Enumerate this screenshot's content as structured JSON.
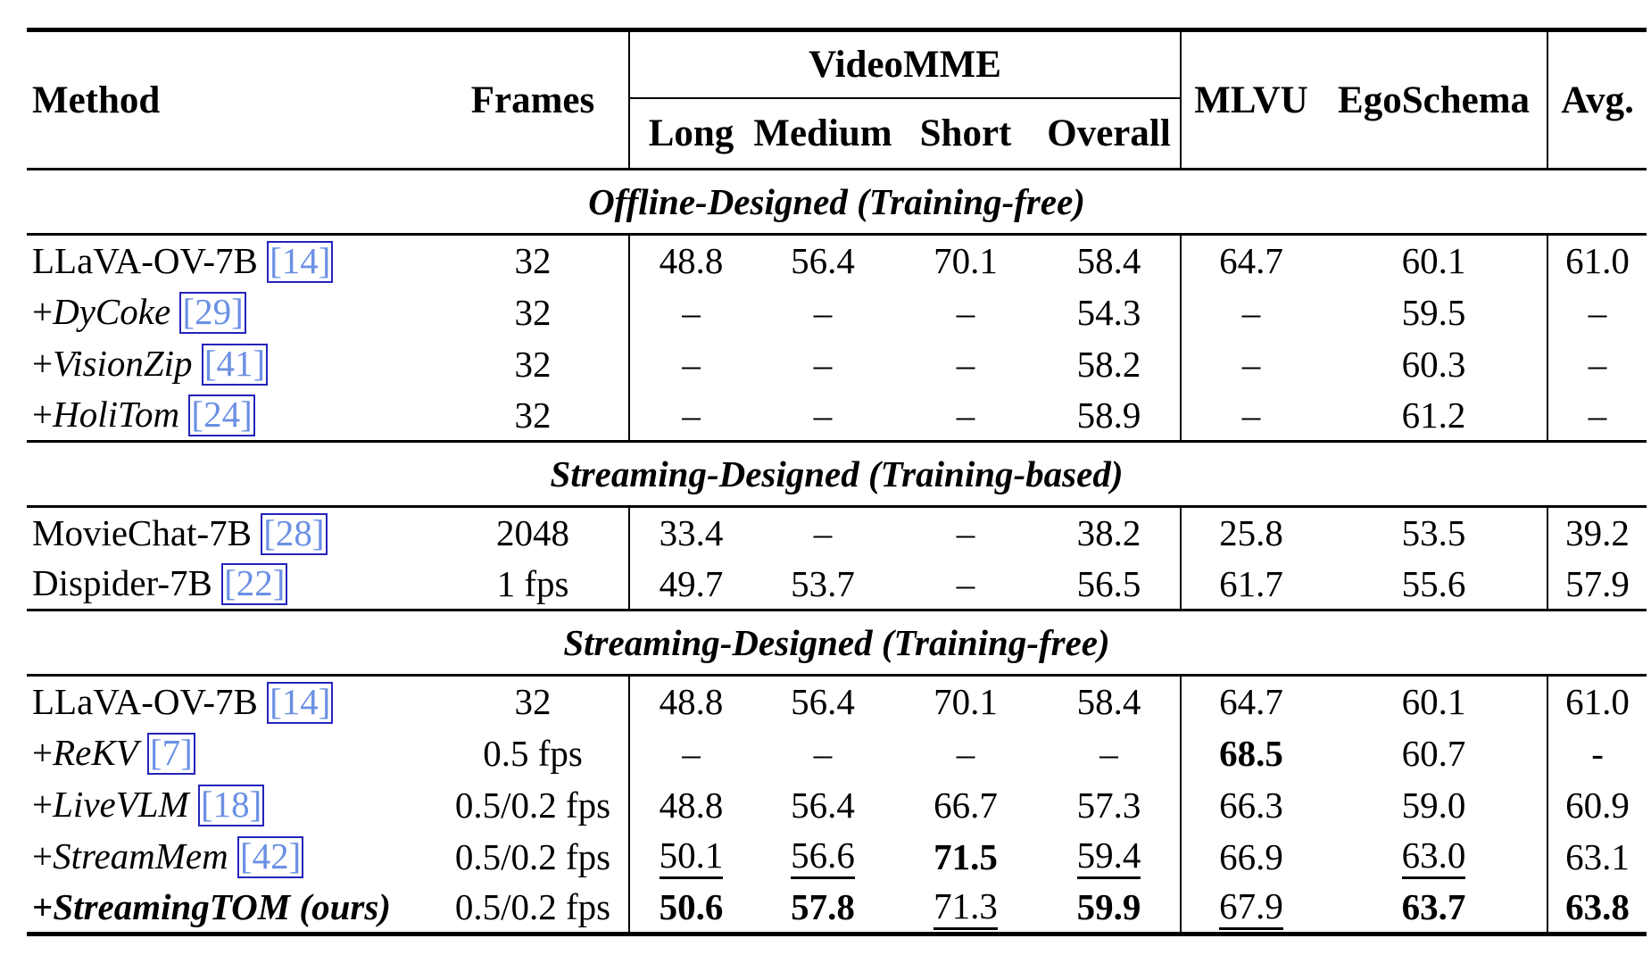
{
  "colors": {
    "citation_text": "#6b90e4",
    "citation_border": "#2323bb",
    "rule": "#000000"
  },
  "table": {
    "headers": {
      "method": "Method",
      "frames": "Frames",
      "videomme": "VideoMME",
      "videomme_sub": [
        "Long",
        "Medium",
        "Short",
        "Overall"
      ],
      "mlvu": "MLVU",
      "egoschema": "EgoSchema",
      "avg": "Avg."
    },
    "sections": [
      {
        "title": "Offline-Designed (Training-free)",
        "rows": [
          {
            "method": {
              "pre": "",
              "name": "LLaVA-OV-7B",
              "italic": false,
              "bold": false,
              "cite": "[14]"
            },
            "frames": "32",
            "values": [
              {
                "t": "48.8"
              },
              {
                "t": "56.4"
              },
              {
                "t": "70.1"
              },
              {
                "t": "58.4"
              },
              {
                "t": "64.7"
              },
              {
                "t": "60.1"
              },
              {
                "t": "61.0"
              }
            ]
          },
          {
            "method": {
              "pre": "+",
              "name": "DyCoke",
              "italic": true,
              "bold": false,
              "cite": "[29]"
            },
            "frames": "32",
            "values": [
              {
                "t": "–"
              },
              {
                "t": "–"
              },
              {
                "t": "–"
              },
              {
                "t": "54.3"
              },
              {
                "t": "–"
              },
              {
                "t": "59.5"
              },
              {
                "t": "–"
              }
            ]
          },
          {
            "method": {
              "pre": "+",
              "name": "VisionZip",
              "italic": true,
              "bold": false,
              "cite": "[41]"
            },
            "frames": "32",
            "values": [
              {
                "t": "–"
              },
              {
                "t": "–"
              },
              {
                "t": "–"
              },
              {
                "t": "58.2"
              },
              {
                "t": "–"
              },
              {
                "t": "60.3"
              },
              {
                "t": "–"
              }
            ]
          },
          {
            "method": {
              "pre": "+",
              "name": "HoliTom",
              "italic": true,
              "bold": false,
              "cite": "[24]"
            },
            "frames": "32",
            "values": [
              {
                "t": "–"
              },
              {
                "t": "–"
              },
              {
                "t": "–"
              },
              {
                "t": "58.9"
              },
              {
                "t": "–"
              },
              {
                "t": "61.2"
              },
              {
                "t": "–"
              }
            ]
          }
        ]
      },
      {
        "title": "Streaming-Designed (Training-based)",
        "rows": [
          {
            "method": {
              "pre": "",
              "name": "MovieChat-7B",
              "italic": false,
              "bold": false,
              "cite": "[28]"
            },
            "frames": "2048",
            "values": [
              {
                "t": "33.4"
              },
              {
                "t": "–"
              },
              {
                "t": "–"
              },
              {
                "t": "38.2"
              },
              {
                "t": "25.8"
              },
              {
                "t": "53.5"
              },
              {
                "t": "39.2"
              }
            ]
          },
          {
            "method": {
              "pre": "",
              "name": "Dispider-7B",
              "italic": false,
              "bold": false,
              "cite": "[22]"
            },
            "frames": "1 fps",
            "values": [
              {
                "t": "49.7"
              },
              {
                "t": "53.7"
              },
              {
                "t": "–"
              },
              {
                "t": "56.5"
              },
              {
                "t": "61.7"
              },
              {
                "t": "55.6"
              },
              {
                "t": "57.9"
              }
            ]
          }
        ]
      },
      {
        "title": "Streaming-Designed (Training-free)",
        "rows": [
          {
            "method": {
              "pre": "",
              "name": "LLaVA-OV-7B",
              "italic": false,
              "bold": false,
              "cite": "[14]"
            },
            "frames": "32",
            "values": [
              {
                "t": "48.8"
              },
              {
                "t": "56.4"
              },
              {
                "t": "70.1"
              },
              {
                "t": "58.4"
              },
              {
                "t": "64.7"
              },
              {
                "t": "60.1"
              },
              {
                "t": "61.0"
              }
            ]
          },
          {
            "method": {
              "pre": "+",
              "name": "ReKV",
              "italic": true,
              "bold": false,
              "cite": "[7]"
            },
            "frames": "0.5 fps",
            "values": [
              {
                "t": "–"
              },
              {
                "t": "–"
              },
              {
                "t": "–"
              },
              {
                "t": "–"
              },
              {
                "t": "68.5",
                "b": true
              },
              {
                "t": "60.7"
              },
              {
                "t": "-"
              }
            ]
          },
          {
            "method": {
              "pre": "+",
              "name": "LiveVLM",
              "italic": true,
              "bold": false,
              "cite": "[18]"
            },
            "frames": "0.5/0.2 fps",
            "values": [
              {
                "t": "48.8"
              },
              {
                "t": "56.4"
              },
              {
                "t": "66.7"
              },
              {
                "t": "57.3"
              },
              {
                "t": "66.3"
              },
              {
                "t": "59.0"
              },
              {
                "t": "60.9"
              }
            ]
          },
          {
            "method": {
              "pre": "+",
              "name": "StreamMem",
              "italic": true,
              "bold": false,
              "cite": "[42]"
            },
            "frames": "0.5/0.2 fps",
            "values": [
              {
                "t": "50.1",
                "u": true
              },
              {
                "t": "56.6",
                "u": true
              },
              {
                "t": "71.5",
                "b": true
              },
              {
                "t": "59.4",
                "u": true
              },
              {
                "t": "66.9"
              },
              {
                "t": "63.0",
                "u": true
              },
              {
                "t": "63.1"
              }
            ]
          },
          {
            "method": {
              "pre": "+",
              "name": "StreamingTOM (ours)",
              "italic": true,
              "bold": true,
              "cite": ""
            },
            "frames": "0.5/0.2 fps",
            "values": [
              {
                "t": "50.6",
                "b": true
              },
              {
                "t": "57.8",
                "b": true
              },
              {
                "t": "71.3",
                "u": true
              },
              {
                "t": "59.9",
                "b": true
              },
              {
                "t": "67.9",
                "u": true
              },
              {
                "t": "63.7",
                "b": true
              },
              {
                "t": "63.8",
                "b": true
              }
            ]
          }
        ]
      }
    ]
  }
}
